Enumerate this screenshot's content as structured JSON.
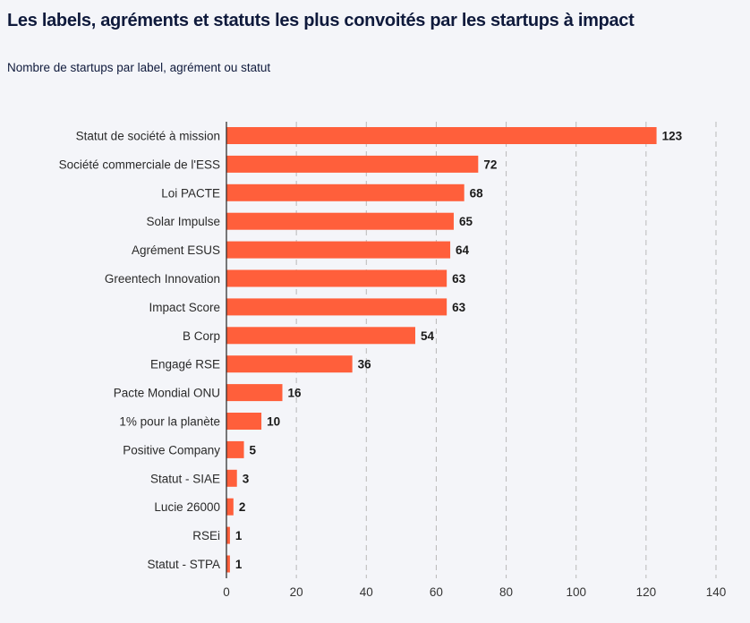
{
  "header": {
    "title": "Les labels, agréments et statuts les plus convoités par les startups à impact",
    "subtitle": "Nombre de startups par label, agrément ou statut"
  },
  "colors": {
    "bar": "#ff5f3b",
    "background": "#f4f5f9",
    "title": "#0f1a3c",
    "grid": "#b9b9b9",
    "axis": "#222222"
  },
  "chart_data": {
    "type": "bar",
    "orientation": "horizontal",
    "title": "Les labels, agréments et statuts les plus convoités par les startups à impact",
    "subtitle": "Nombre de startups par label, agrément ou statut",
    "xlabel": "",
    "ylabel": "",
    "categories": [
      "Statut de société à mission",
      "Société commerciale de l'ESS",
      "Loi PACTE",
      "Solar Impulse",
      "Agrément ESUS",
      "Greentech Innovation",
      "Impact Score",
      "B Corp",
      "Engagé RSE",
      "Pacte Mondial ONU",
      "1% pour la planète",
      "Positive Company",
      "Statut - SIAE",
      "Lucie 26000",
      "RSEi",
      "Statut - STPA"
    ],
    "values": [
      123,
      72,
      68,
      65,
      64,
      63,
      63,
      54,
      36,
      16,
      10,
      5,
      3,
      2,
      1,
      1
    ],
    "xlim": [
      0,
      140
    ],
    "xticks": [
      0,
      20,
      40,
      60,
      80,
      100,
      120,
      140
    ],
    "grid": "vertical dashed",
    "data_labels": true,
    "legend": "none"
  }
}
